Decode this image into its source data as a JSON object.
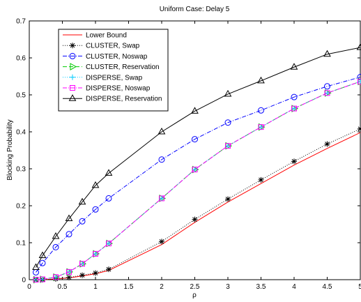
{
  "chart_data": {
    "type": "line",
    "title": "Uniform Case: Delay 5",
    "xlabel": "ρ",
    "ylabel": "Blocking Probability",
    "xlim": [
      0,
      5
    ],
    "ylim": [
      0,
      0.7
    ],
    "xticks": [
      0,
      0.5,
      1,
      1.5,
      2,
      2.5,
      3,
      3.5,
      4,
      4.5,
      5
    ],
    "xtick_labels": [
      "0",
      "0.5",
      "1",
      "1.5",
      "2",
      "2.5",
      "3",
      "3.5",
      "4",
      "4.5",
      "5"
    ],
    "yticks": [
      0,
      0.1,
      0.2,
      0.3,
      0.4,
      0.5,
      0.6,
      0.7
    ],
    "ytick_labels": [
      "0",
      "0.1",
      "0.2",
      "0.3",
      "0.4",
      "0.5",
      "0.6",
      "0.7"
    ],
    "legend_position": "top-left",
    "grid": false,
    "series": [
      {
        "name": "Lower Bound",
        "color": "#ff0000",
        "line": "solid",
        "marker": "none",
        "x": [
          0.1,
          0.2,
          0.4,
          0.6,
          0.8,
          1.0,
          1.2,
          2.0,
          2.5,
          3.0,
          3.5,
          4.0,
          4.5,
          5.0
        ],
        "y": [
          0.0,
          0.0,
          0.002,
          0.005,
          0.01,
          0.016,
          0.025,
          0.095,
          0.155,
          0.21,
          0.26,
          0.31,
          0.355,
          0.398
        ]
      },
      {
        "name": "CLUSTER, Swap",
        "color": "#000000",
        "line": "dotted",
        "marker": "star",
        "x": [
          0.1,
          0.2,
          0.4,
          0.6,
          0.8,
          1.0,
          1.2,
          2.0,
          2.5,
          3.0,
          3.5,
          4.0,
          4.5,
          5.0
        ],
        "y": [
          0.0,
          0.0,
          0.002,
          0.006,
          0.012,
          0.018,
          0.028,
          0.103,
          0.163,
          0.218,
          0.27,
          0.32,
          0.367,
          0.408
        ]
      },
      {
        "name": "CLUSTER, Noswap",
        "color": "#0000ff",
        "line": "dashdot",
        "marker": "circle",
        "x": [
          0.1,
          0.2,
          0.4,
          0.6,
          0.8,
          1.0,
          1.2,
          2.0,
          2.5,
          3.0,
          3.5,
          4.0,
          4.5,
          5.0
        ],
        "y": [
          0.02,
          0.045,
          0.088,
          0.123,
          0.158,
          0.19,
          0.22,
          0.325,
          0.38,
          0.425,
          0.458,
          0.494,
          0.523,
          0.548
        ]
      },
      {
        "name": "CLUSTER, Reservation",
        "color": "#00cc00",
        "line": "dashed",
        "marker": "triangle-right",
        "x": [
          0.1,
          0.2,
          0.4,
          0.6,
          0.8,
          1.0,
          1.2,
          2.0,
          2.5,
          3.0,
          3.5,
          4.0,
          4.5,
          5.0
        ],
        "y": [
          0.0,
          0.001,
          0.007,
          0.021,
          0.043,
          0.07,
          0.098,
          0.22,
          0.298,
          0.362,
          0.413,
          0.463,
          0.505,
          0.536
        ]
      },
      {
        "name": "DISPERSE, Swap",
        "color": "#00ccff",
        "line": "dotted",
        "marker": "plus",
        "x": [
          0.1,
          0.2,
          0.4,
          0.6,
          0.8,
          1.0,
          1.2,
          2.0,
          2.5,
          3.0,
          3.5,
          4.0,
          4.5,
          5.0
        ],
        "y": [
          0.0,
          0.001,
          0.007,
          0.021,
          0.043,
          0.07,
          0.098,
          0.22,
          0.298,
          0.362,
          0.413,
          0.463,
          0.505,
          0.536
        ]
      },
      {
        "name": "DISPERSE, Noswap",
        "color": "#ff00ff",
        "line": "dashdot",
        "marker": "square",
        "x": [
          0.1,
          0.2,
          0.4,
          0.6,
          0.8,
          1.0,
          1.2,
          2.0,
          2.5,
          3.0,
          3.5,
          4.0,
          4.5,
          5.0
        ],
        "y": [
          0.0,
          0.001,
          0.007,
          0.021,
          0.043,
          0.07,
          0.098,
          0.22,
          0.298,
          0.362,
          0.413,
          0.463,
          0.505,
          0.536
        ]
      },
      {
        "name": "DISPERSE, Reservation",
        "color": "#000000",
        "line": "solid",
        "marker": "triangle-up",
        "x": [
          0.1,
          0.2,
          0.4,
          0.6,
          0.8,
          1.0,
          1.2,
          2.0,
          2.5,
          3.0,
          3.5,
          4.0,
          4.5,
          5.0
        ],
        "y": [
          0.033,
          0.065,
          0.117,
          0.165,
          0.21,
          0.255,
          0.288,
          0.4,
          0.456,
          0.502,
          0.538,
          0.575,
          0.61,
          0.628
        ]
      }
    ]
  }
}
